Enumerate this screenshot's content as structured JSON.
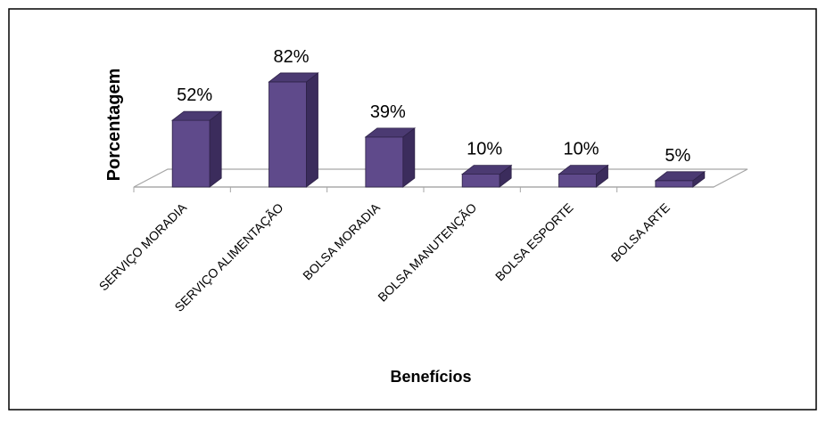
{
  "chart_data": {
    "type": "bar",
    "categories": [
      "SERVIÇO MORADIA",
      "SERVIÇO ALIMENTAÇÃO",
      "BOLSA MORADIA",
      "BOLSA MANUTENÇÃO",
      "BOLSA ESPORTE",
      "BOLSA ARTE"
    ],
    "values": [
      52,
      82,
      39,
      10,
      10,
      5
    ],
    "data_labels": [
      "52%",
      "82%",
      "39%",
      "10%",
      "10%",
      "5%"
    ],
    "xlabel": "Benefícios",
    "ylabel": "Porcentagem",
    "ylim": [
      0,
      100
    ],
    "grid": false,
    "legend": "none",
    "three_d": true,
    "colors": {
      "bar_front": "#5f4a8b",
      "bar_side": "#3b2c5c",
      "bar_top": "#4b3a72",
      "frame": "#000000",
      "floor": "#a6a6a6"
    }
  }
}
